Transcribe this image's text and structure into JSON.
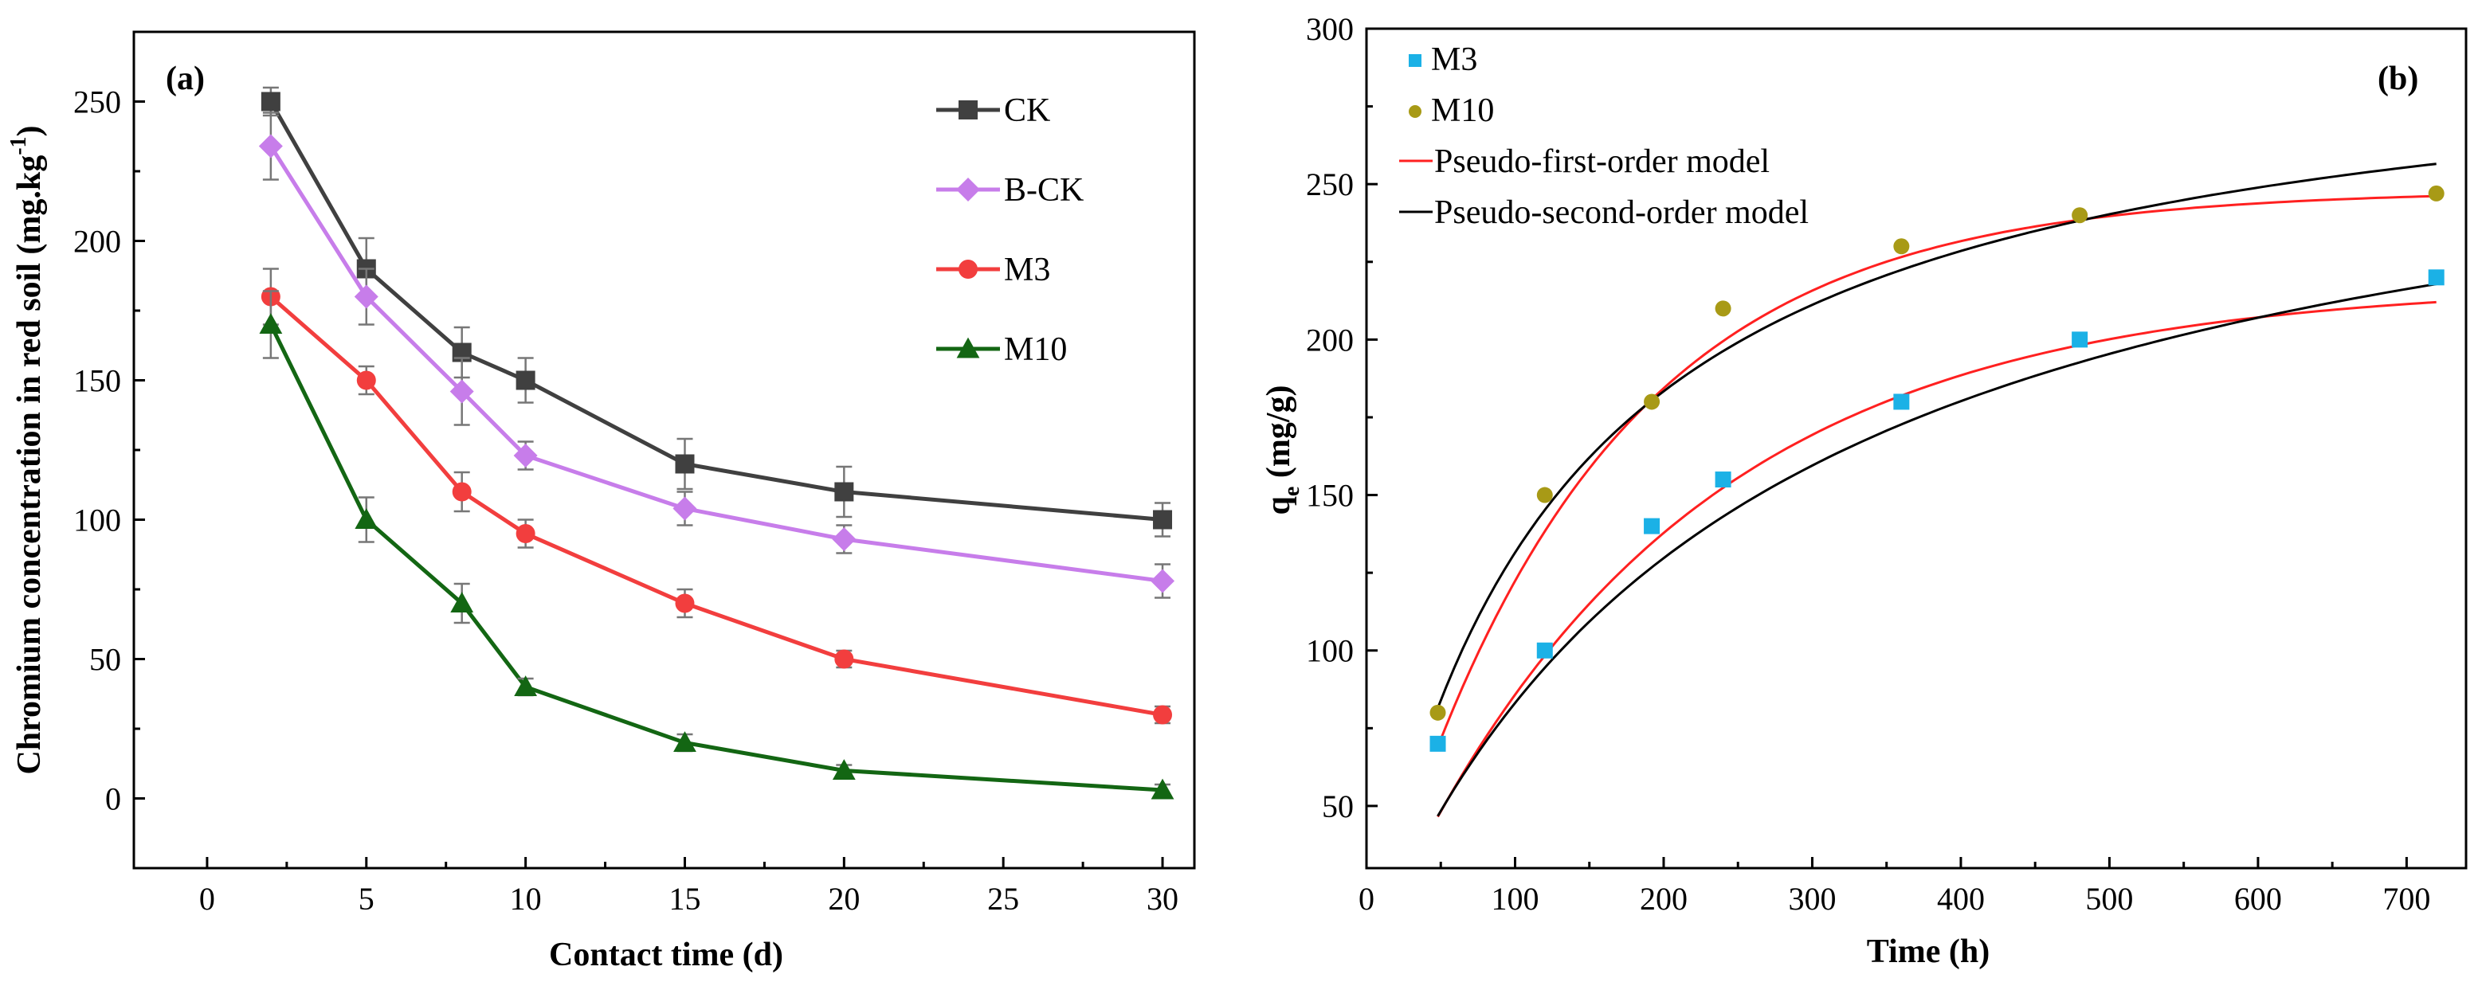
{
  "chart_data": [
    {
      "type": "line",
      "panel_label": "(a)",
      "xlabel": "Contact time (d)",
      "ylabel": "Chromium concentration in red soil (mg.kg",
      "ylabel_sup": "-1",
      "ylabel_close": ")",
      "xlim": [
        -2.3,
        31
      ],
      "ylim": [
        -25,
        275
      ],
      "xticks": [
        0,
        5,
        10,
        15,
        20,
        25,
        30
      ],
      "yticks": [
        0,
        50,
        100,
        150,
        200,
        250
      ],
      "legend_position": "top-right",
      "x": [
        2,
        5,
        8,
        10,
        15,
        20,
        30
      ],
      "series": [
        {
          "name": "CK",
          "color": "#404040",
          "marker": "square",
          "values": [
            250,
            190,
            160,
            150,
            120,
            110,
            100
          ],
          "errors": [
            5,
            11,
            9,
            8,
            9,
            9,
            6
          ]
        },
        {
          "name": "B-CK",
          "color": "#c77dea",
          "marker": "diamond",
          "values": [
            234,
            180,
            146,
            123,
            104,
            93,
            78
          ],
          "errors": [
            12,
            10,
            12,
            5,
            6,
            5,
            6
          ]
        },
        {
          "name": "M3",
          "color": "#f23e3e",
          "marker": "circle",
          "values": [
            180,
            150,
            110,
            95,
            70,
            50,
            30
          ],
          "errors": [
            10,
            5,
            7,
            5,
            5,
            3,
            3
          ]
        },
        {
          "name": "M10",
          "color": "#136613",
          "marker": "triangle",
          "values": [
            170,
            100,
            70,
            40,
            20,
            10,
            3
          ],
          "errors": [
            12,
            8,
            7,
            3,
            3,
            2,
            2
          ]
        }
      ]
    },
    {
      "type": "scatter",
      "panel_label": "(b)",
      "xlabel": "Time (h)",
      "ylabel_main": "q",
      "ylabel_sub": "e",
      "ylabel_rest": " (mg/g)",
      "xlim": [
        0,
        740
      ],
      "ylim": [
        30,
        300
      ],
      "xticks": [
        0,
        100,
        200,
        300,
        400,
        500,
        600,
        700
      ],
      "yticks": [
        50,
        100,
        150,
        200,
        250,
        300
      ],
      "legend_position": "top-left",
      "series": [
        {
          "name": "M3",
          "color": "#1bb1e6",
          "marker": "square",
          "x": [
            48,
            120,
            192,
            240,
            360,
            480,
            720
          ],
          "y": [
            70,
            100,
            140,
            155,
            180,
            200,
            220
          ]
        },
        {
          "name": "M10",
          "color": "#a89a16",
          "marker": "circle",
          "x": [
            48,
            120,
            192,
            240,
            360,
            480,
            720
          ],
          "y": [
            80,
            150,
            180,
            210,
            230,
            240,
            247
          ]
        }
      ],
      "models": [
        {
          "name": "Pseudo-first-order model",
          "color": "#ff2020",
          "kind": "pfo",
          "curves": [
            {
              "for": "M3",
              "qe": 218,
              "k": 0.005
            },
            {
              "for": "M10",
              "qe": 248,
              "k": 0.0068
            }
          ]
        },
        {
          "name": "Pseudo-second-order model",
          "color": "#000000",
          "kind": "pso",
          "curves": [
            {
              "for": "M3",
              "qe": 295,
              "k": 1.33e-05
            },
            {
              "for": "M10",
              "qe": 303,
              "k": 2.53e-05
            }
          ]
        }
      ],
      "model_x_range": [
        48,
        720
      ]
    }
  ]
}
